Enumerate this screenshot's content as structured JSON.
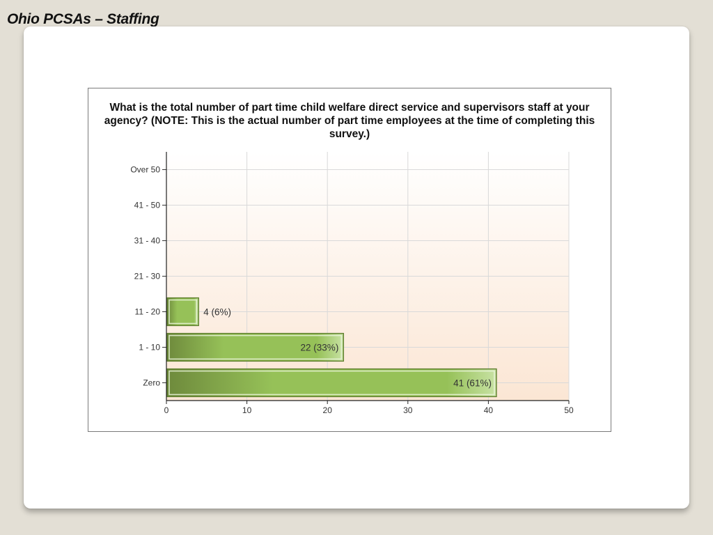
{
  "slide": {
    "title": "Ohio PCSAs – Staffing"
  },
  "colors": {
    "background": "#e3dfd5",
    "card": "#ffffff",
    "bar_dark": "#6e8a3c",
    "bar_mid": "#96c158",
    "bar_light": "#c8e2a4",
    "plot_bg_top": "#ffffff",
    "plot_bg_bottom": "#fbe6d4",
    "grid": "#d9d9d9"
  },
  "chart_data": {
    "type": "bar",
    "orientation": "horizontal",
    "title": "What is the total number of part time child welfare direct service and supervisors staff at your agency? (NOTE: This is the actual number of part time employees at the time of completing this survey.)",
    "categories": [
      "Over 50",
      "41 - 50",
      "31 - 40",
      "21 - 30",
      "11 - 20",
      "1 - 10",
      "Zero"
    ],
    "values": [
      0,
      0,
      0,
      0,
      4,
      22,
      41
    ],
    "data_labels": [
      "",
      "",
      "",
      "",
      "4 (6%)",
      "22 (33%)",
      "41 (61%)"
    ],
    "xlim": [
      0,
      50
    ],
    "x_ticks": [
      0,
      10,
      20,
      30,
      40,
      50
    ],
    "xlabel": "",
    "ylabel": "",
    "grid": true,
    "legend": "none"
  }
}
